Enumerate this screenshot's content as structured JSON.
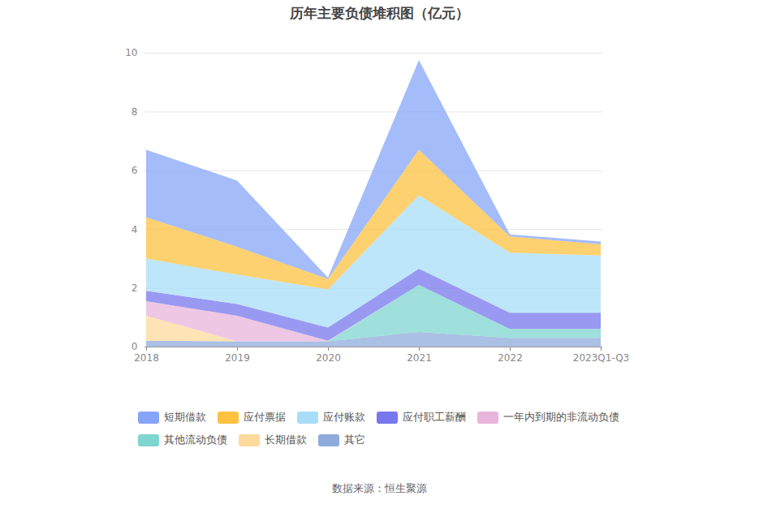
{
  "chart_data": {
    "type": "area",
    "title": "历年主要负债堆积图（亿元）",
    "stacked": true,
    "grid": true,
    "categories": [
      "2018",
      "2019",
      "2020",
      "2021",
      "2022",
      "2023Q1-Q3"
    ],
    "ylim": [
      0,
      10
    ],
    "yticks": [
      0,
      2,
      4,
      6,
      8,
      10
    ],
    "series": [
      {
        "name": "短期借款",
        "color": "#86a5f8",
        "values": [
          2.3,
          2.25,
          0.05,
          3.05,
          0.07,
          0.1
        ]
      },
      {
        "name": "应付票据",
        "color": "#fcc23f",
        "values": [
          1.4,
          0.95,
          0.35,
          1.55,
          0.55,
          0.38
        ]
      },
      {
        "name": "应付账款",
        "color": "#a8ddf8",
        "values": [
          1.1,
          1.0,
          1.3,
          2.5,
          2.05,
          1.95
        ]
      },
      {
        "name": "应付职工薪酬",
        "color": "#7777ee",
        "values": [
          0.35,
          0.4,
          0.45,
          0.55,
          0.55,
          0.55
        ]
      },
      {
        "name": "一年内到期的非流动负债",
        "color": "#e8b4dc",
        "values": [
          0.5,
          0.87,
          0.02,
          0,
          0,
          0
        ]
      },
      {
        "name": "其他流动负债",
        "color": "#7fd5d0",
        "values": [
          0,
          0,
          0,
          1.6,
          0.3,
          0.3
        ]
      },
      {
        "name": "长期借款",
        "color": "#fdd99b",
        "values": [
          0.85,
          0,
          0,
          0,
          0,
          0
        ]
      },
      {
        "name": "其它",
        "color": "#8eabdb",
        "values": [
          0.2,
          0.18,
          0.18,
          0.5,
          0.3,
          0.3
        ]
      }
    ],
    "source": "数据来源：恒生聚源"
  }
}
